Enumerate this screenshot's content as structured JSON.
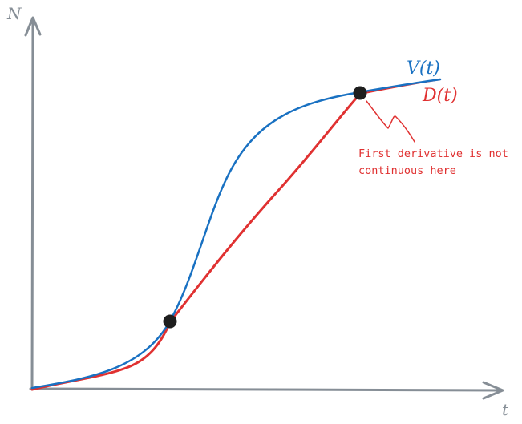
{
  "axes": {
    "y_label": "N",
    "x_label": "t",
    "color": "#868e96"
  },
  "curves": {
    "v": {
      "label": "V(t)",
      "color": "#1971c2"
    },
    "d": {
      "label": "D(t)",
      "color": "#e03131"
    }
  },
  "points": {
    "color": "#1e1e1e"
  },
  "annotation": {
    "line1": "First derivative is not",
    "line2": "continuous here",
    "color": "#e03131"
  }
}
